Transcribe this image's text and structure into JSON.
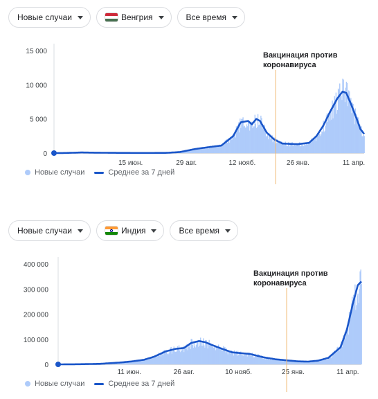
{
  "legend": {
    "cases": "Новые случаи",
    "avg": "Среднее за 7 дней"
  },
  "colors": {
    "bars": "#aecbfa",
    "line": "#1a56c9",
    "marker": "#f0b973",
    "axis": "#dadce0"
  },
  "panel1": {
    "filters": {
      "metric": "Новые случаи",
      "country": "Венгрия",
      "period": "Все время"
    },
    "flag": "hungary-flag-icon"
  },
  "panel2": {
    "filters": {
      "metric": "Новые случаи",
      "country": "Индия",
      "period": "Все время"
    },
    "flag": "india-flag-icon"
  },
  "chart_data": [
    {
      "type": "bar",
      "country": "Венгрия",
      "ylim": [
        0,
        15000
      ],
      "y_ticks": [
        "15 000",
        "10 000",
        "5 000",
        "0"
      ],
      "y_tick_values": [
        15000,
        10000,
        5000,
        0
      ],
      "x_ticks": [
        "15 июн.",
        "29 авг.",
        "12 нояб.",
        "26 янв.",
        "11 апр."
      ],
      "x_tick_dates": [
        "2020-06-15",
        "2020-08-29",
        "2020-11-12",
        "2021-01-26",
        "2021-04-11"
      ],
      "x_start": "2020-03-04",
      "x_end": "2021-04-25",
      "annotation": {
        "date": "2020-12-27",
        "label_line1": "Вакцинация против",
        "label_line2": "коронавируса"
      },
      "series": [
        {
          "name": "Среднее за 7 дней",
          "points": [
            [
              "2020-03-04",
              0
            ],
            [
              "2020-03-20",
              20
            ],
            [
              "2020-04-10",
              90
            ],
            [
              "2020-05-01",
              60
            ],
            [
              "2020-06-01",
              30
            ],
            [
              "2020-07-01",
              20
            ],
            [
              "2020-08-01",
              30
            ],
            [
              "2020-08-20",
              150
            ],
            [
              "2020-09-10",
              600
            ],
            [
              "2020-09-30",
              900
            ],
            [
              "2020-10-15",
              1100
            ],
            [
              "2020-10-31",
              2500
            ],
            [
              "2020-11-10",
              4500
            ],
            [
              "2020-11-20",
              4700
            ],
            [
              "2020-11-25",
              4200
            ],
            [
              "2020-12-01",
              5000
            ],
            [
              "2020-12-06",
              4700
            ],
            [
              "2020-12-15",
              3000
            ],
            [
              "2020-12-25",
              2000
            ],
            [
              "2021-01-05",
              1400
            ],
            [
              "2021-01-25",
              1300
            ],
            [
              "2021-02-10",
              1500
            ],
            [
              "2021-02-20",
              2500
            ],
            [
              "2021-03-01",
              4000
            ],
            [
              "2021-03-10",
              6000
            ],
            [
              "2021-03-20",
              8000
            ],
            [
              "2021-03-27",
              9000
            ],
            [
              "2021-04-01",
              8800
            ],
            [
              "2021-04-08",
              7000
            ],
            [
              "2021-04-15",
              5000
            ],
            [
              "2021-04-20",
              3500
            ],
            [
              "2021-04-25",
              2800
            ]
          ]
        }
      ]
    },
    {
      "type": "bar",
      "country": "Индия",
      "ylim": [
        0,
        400000
      ],
      "y_ticks": [
        "400 000",
        "300 000",
        "200 000",
        "100 000",
        "0"
      ],
      "y_tick_values": [
        400000,
        300000,
        200000,
        100000,
        0
      ],
      "x_ticks": [
        "11 июн.",
        "26 авг.",
        "10 нояб.",
        "25 янв.",
        "11 апр."
      ],
      "x_tick_dates": [
        "2020-06-11",
        "2020-08-26",
        "2020-11-10",
        "2021-01-25",
        "2021-04-11"
      ],
      "x_start": "2020-03-04",
      "x_end": "2021-04-30",
      "annotation": {
        "date": "2021-01-16",
        "label_line1": "Вакцинация против",
        "label_line2": "коронавируса"
      },
      "series": [
        {
          "name": "Среднее за 7 дней",
          "points": [
            [
              "2020-03-04",
              0
            ],
            [
              "2020-04-01",
              500
            ],
            [
              "2020-05-01",
              2000
            ],
            [
              "2020-06-01",
              8000
            ],
            [
              "2020-06-15",
              12000
            ],
            [
              "2020-07-01",
              18000
            ],
            [
              "2020-07-15",
              30000
            ],
            [
              "2020-08-01",
              52000
            ],
            [
              "2020-08-15",
              62000
            ],
            [
              "2020-08-26",
              65000
            ],
            [
              "2020-09-05",
              85000
            ],
            [
              "2020-09-16",
              93000
            ],
            [
              "2020-09-25",
              88000
            ],
            [
              "2020-10-05",
              76000
            ],
            [
              "2020-10-20",
              60000
            ],
            [
              "2020-11-01",
              48000
            ],
            [
              "2020-11-15",
              44000
            ],
            [
              "2020-11-25",
              42000
            ],
            [
              "2020-12-05",
              35000
            ],
            [
              "2020-12-15",
              28000
            ],
            [
              "2021-01-01",
              20000
            ],
            [
              "2021-01-16",
              16000
            ],
            [
              "2021-02-01",
              12000
            ],
            [
              "2021-02-15",
              11000
            ],
            [
              "2021-03-01",
              15000
            ],
            [
              "2021-03-15",
              26000
            ],
            [
              "2021-04-01",
              68000
            ],
            [
              "2021-04-10",
              140000
            ],
            [
              "2021-04-18",
              240000
            ],
            [
              "2021-04-25",
              315000
            ],
            [
              "2021-04-30",
              330000
            ]
          ]
        }
      ]
    }
  ]
}
